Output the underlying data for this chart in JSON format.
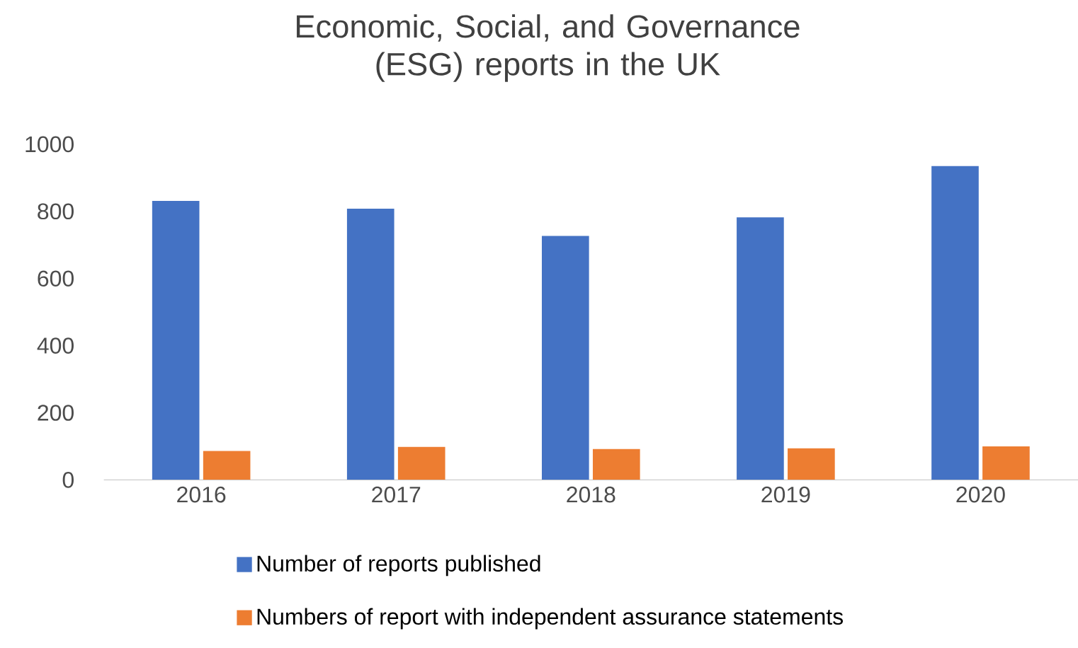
{
  "chart_data": {
    "type": "bar",
    "title": "Economic, Social, and Governance (ESG) reports in the UK",
    "categories": [
      "2016",
      "2017",
      "2018",
      "2019",
      "2020"
    ],
    "series": [
      {
        "name": "Number of reports published",
        "color": "#4472c4",
        "values": [
          831,
          808,
          727,
          782,
          935
        ]
      },
      {
        "name": "Numbers of report with independent assurance statements",
        "color": "#ed7d31",
        "values": [
          86,
          98,
          92,
          94,
          100
        ]
      }
    ],
    "ylim": [
      0,
      1000
    ],
    "yticks": [
      0,
      200,
      400,
      600,
      800,
      1000
    ],
    "legend": "bottom"
  }
}
